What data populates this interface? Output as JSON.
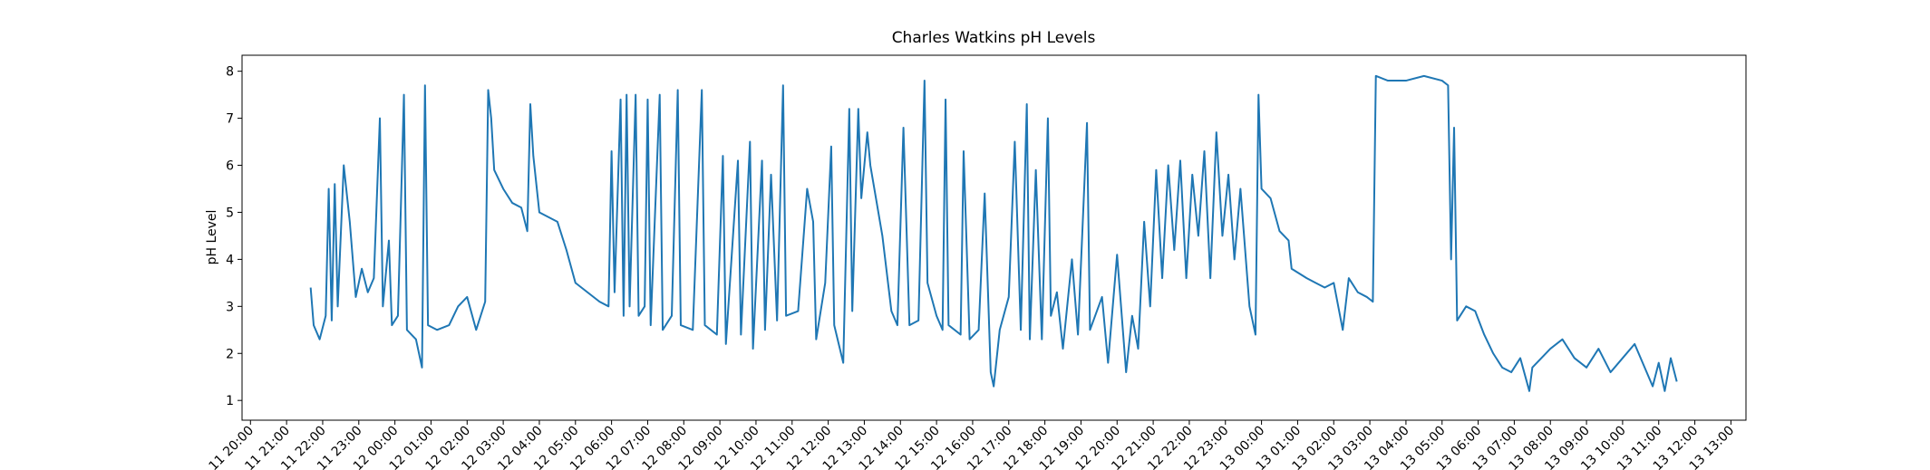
{
  "chart_data": {
    "type": "line",
    "title": "Charles Watkins pH Levels",
    "y_label": "pH Level",
    "color": "#1f77b4",
    "x": [
      "11 21:40",
      "11 21:45",
      "11 21:55",
      "11 22:05",
      "11 22:10",
      "11 22:15",
      "11 22:20",
      "11 22:25",
      "11 22:35",
      "11 22:45",
      "11 22:55",
      "11 23:05",
      "11 23:15",
      "11 23:25",
      "11 23:35",
      "11 23:40",
      "11 23:50",
      "11 23:55",
      "12 00:05",
      "12 00:15",
      "12 00:20",
      "12 00:35",
      "12 00:45",
      "12 00:50",
      "12 00:55",
      "12 01:10",
      "12 01:30",
      "12 01:45",
      "12 02:00",
      "12 02:15",
      "12 02:30",
      "12 02:35",
      "12 02:40",
      "12 02:45",
      "12 03:00",
      "12 03:15",
      "12 03:30",
      "12 03:40",
      "12 03:45",
      "12 03:50",
      "12 04:00",
      "12 04:30",
      "12 04:45",
      "12 05:00",
      "12 05:20",
      "12 05:40",
      "12 05:55",
      "12 06:00",
      "12 06:05",
      "12 06:15",
      "12 06:20",
      "12 06:25",
      "12 06:30",
      "12 06:40",
      "12 06:45",
      "12 06:55",
      "12 07:00",
      "12 07:05",
      "12 07:20",
      "12 07:25",
      "12 07:40",
      "12 07:50",
      "12 07:55",
      "12 08:15",
      "12 08:30",
      "12 08:35",
      "12 08:55",
      "12 09:05",
      "12 09:10",
      "12 09:30",
      "12 09:35",
      "12 09:50",
      "12 09:55",
      "12 10:10",
      "12 10:15",
      "12 10:25",
      "12 10:35",
      "12 10:45",
      "12 10:50",
      "12 11:10",
      "12 11:25",
      "12 11:35",
      "12 11:40",
      "12 11:55",
      "12 12:05",
      "12 12:10",
      "12 12:25",
      "12 12:35",
      "12 12:40",
      "12 12:50",
      "12 12:55",
      "12 13:05",
      "12 13:10",
      "12 13:30",
      "12 13:45",
      "12 13:55",
      "12 14:05",
      "12 14:15",
      "12 14:30",
      "12 14:40",
      "12 14:45",
      "12 15:00",
      "12 15:10",
      "12 15:15",
      "12 15:20",
      "12 15:40",
      "12 15:45",
      "12 15:55",
      "12 16:10",
      "12 16:20",
      "12 16:30",
      "12 16:35",
      "12 16:45",
      "12 17:00",
      "12 17:10",
      "12 17:20",
      "12 17:30",
      "12 17:35",
      "12 17:45",
      "12 17:55",
      "12 18:05",
      "12 18:10",
      "12 18:20",
      "12 18:30",
      "12 18:45",
      "12 18:55",
      "12 19:10",
      "12 19:15",
      "12 19:35",
      "12 19:45",
      "12 20:00",
      "12 20:15",
      "12 20:25",
      "12 20:35",
      "12 20:45",
      "12 20:55",
      "12 21:05",
      "12 21:15",
      "12 21:25",
      "12 21:35",
      "12 21:45",
      "12 21:55",
      "12 22:05",
      "12 22:15",
      "12 22:25",
      "12 22:35",
      "12 22:45",
      "12 22:55",
      "12 23:05",
      "12 23:15",
      "12 23:25",
      "12 23:40",
      "12 23:50",
      "12 23:55",
      "13 00:00",
      "13 00:15",
      "13 00:30",
      "13 00:45",
      "13 00:50",
      "13 01:15",
      "13 01:30",
      "13 01:45",
      "13 02:00",
      "13 02:15",
      "13 02:25",
      "13 02:40",
      "13 02:55",
      "13 03:05",
      "13 03:10",
      "13 03:30",
      "13 04:00",
      "13 04:30",
      "13 05:00",
      "13 05:10",
      "13 05:15",
      "13 05:20",
      "13 05:25",
      "13 05:40",
      "13 05:55",
      "13 06:10",
      "13 06:25",
      "13 06:40",
      "13 06:55",
      "13 07:10",
      "13 07:25",
      "13 07:30",
      "13 08:00",
      "13 08:20",
      "13 08:40",
      "13 09:00",
      "13 09:20",
      "13 09:40",
      "13 10:00",
      "13 10:20",
      "13 10:40",
      "13 10:50",
      "13 11:00",
      "13 11:10",
      "13 11:20",
      "13 11:30"
    ],
    "values": [
      3.4,
      2.6,
      2.3,
      2.8,
      5.5,
      2.7,
      5.6,
      3.0,
      6.0,
      4.8,
      3.2,
      3.8,
      3.3,
      3.6,
      7.0,
      3.0,
      4.4,
      2.6,
      2.8,
      7.5,
      2.5,
      2.3,
      1.7,
      7.7,
      2.6,
      2.5,
      2.6,
      3.0,
      3.2,
      2.5,
      3.1,
      7.6,
      7.0,
      5.9,
      5.5,
      5.2,
      5.1,
      4.6,
      7.3,
      6.2,
      5.0,
      4.8,
      4.2,
      3.5,
      3.3,
      3.1,
      3.0,
      6.3,
      3.3,
      7.4,
      2.8,
      7.5,
      3.0,
      7.5,
      2.8,
      3.0,
      7.4,
      2.6,
      7.5,
      2.5,
      2.8,
      7.6,
      2.6,
      2.5,
      7.6,
      2.6,
      2.4,
      6.2,
      2.2,
      6.1,
      2.4,
      6.5,
      2.1,
      6.1,
      2.5,
      5.8,
      2.7,
      7.7,
      2.8,
      2.9,
      5.5,
      4.8,
      2.3,
      3.5,
      6.4,
      2.6,
      1.8,
      7.2,
      2.9,
      7.2,
      5.3,
      6.7,
      6.0,
      4.5,
      2.9,
      2.6,
      6.8,
      2.6,
      2.7,
      7.8,
      3.5,
      2.8,
      2.5,
      7.4,
      2.6,
      2.4,
      6.3,
      2.3,
      2.5,
      5.4,
      1.6,
      1.3,
      2.5,
      3.2,
      6.5,
      2.5,
      7.3,
      2.3,
      5.9,
      2.3,
      7.0,
      2.8,
      3.3,
      2.1,
      4.0,
      2.4,
      6.9,
      2.5,
      3.2,
      1.8,
      4.1,
      1.6,
      2.8,
      2.1,
      4.8,
      3.0,
      5.9,
      3.6,
      6.0,
      4.2,
      6.1,
      3.6,
      5.8,
      4.5,
      6.3,
      3.6,
      6.7,
      4.5,
      5.8,
      4.0,
      5.5,
      3.0,
      2.4,
      7.5,
      5.5,
      5.3,
      4.6,
      4.4,
      3.8,
      3.6,
      3.5,
      3.4,
      3.5,
      2.5,
      3.6,
      3.3,
      3.2,
      3.1,
      7.9,
      7.8,
      7.8,
      7.9,
      7.8,
      7.7,
      4.0,
      6.8,
      2.7,
      3.0,
      2.9,
      2.4,
      2.0,
      1.7,
      1.6,
      1.9,
      1.2,
      1.7,
      2.1,
      2.3,
      1.9,
      1.7,
      2.1,
      1.6,
      1.9,
      2.2,
      1.6,
      1.3,
      1.8,
      1.2,
      1.9,
      1.4
    ],
    "xlim": [
      "11 19:46",
      "13 13:25"
    ],
    "xticks": [
      "11 20:00",
      "11 21:00",
      "11 22:00",
      "11 23:00",
      "12 00:00",
      "12 01:00",
      "12 02:00",
      "12 03:00",
      "12 04:00",
      "12 05:00",
      "12 06:00",
      "12 07:00",
      "12 08:00",
      "12 09:00",
      "12 10:00",
      "12 11:00",
      "12 12:00",
      "12 13:00",
      "12 14:00",
      "12 15:00",
      "12 16:00",
      "12 17:00",
      "12 18:00",
      "12 19:00",
      "12 20:00",
      "12 21:00",
      "12 22:00",
      "12 23:00",
      "13 00:00",
      "13 01:00",
      "13 02:00",
      "13 03:00",
      "13 04:00",
      "13 05:00",
      "13 06:00",
      "13 07:00",
      "13 08:00",
      "13 09:00",
      "13 10:00",
      "13 11:00",
      "13 12:00",
      "13 13:00"
    ],
    "ylim": [
      0.58,
      8.34
    ],
    "yticks": [
      1,
      2,
      3,
      4,
      5,
      6,
      7,
      8
    ],
    "grid": false
  }
}
